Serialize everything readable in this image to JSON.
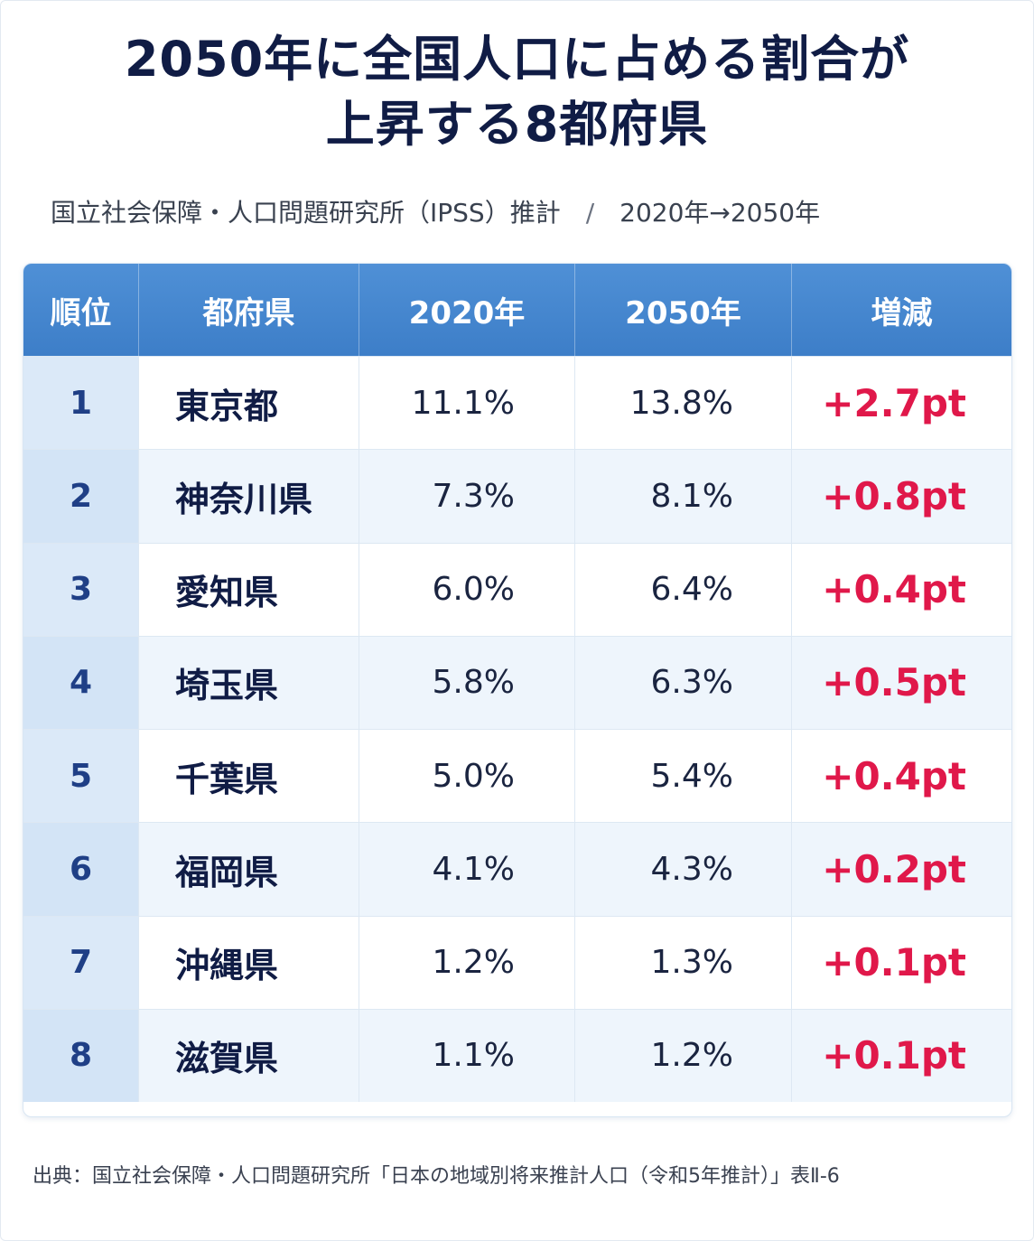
{
  "title_lines": [
    "2050年に全国人口に占める割合が",
    "上昇する8都府県"
  ],
  "subtitle": {
    "left": "国立社会保障・人口問題研究所（IPSS）推計",
    "separator": "/",
    "right": "2020年→2050年"
  },
  "colors": {
    "header_bg": "#4386cf",
    "rank_bg": "#dbe9f8",
    "alt_row_bg": "#eef5fc",
    "delta_text": "#e0184a",
    "title_text": "#101c45"
  },
  "chart_data": {
    "type": "table",
    "title": "2050年に全国人口に占める割合が上昇する8都府県",
    "columns": [
      "順位",
      "都府県",
      "2020年",
      "2050年",
      "増減"
    ],
    "rows": [
      {
        "rank": "1",
        "pref": "東京都",
        "v2020": "11.1%",
        "v2050": "13.8%",
        "delta": "+2.7pt"
      },
      {
        "rank": "2",
        "pref": "神奈川県",
        "v2020": "7.3%",
        "v2050": "8.1%",
        "delta": "+0.8pt"
      },
      {
        "rank": "3",
        "pref": "愛知県",
        "v2020": "6.0%",
        "v2050": "6.4%",
        "delta": "+0.4pt"
      },
      {
        "rank": "4",
        "pref": "埼玉県",
        "v2020": "5.8%",
        "v2050": "6.3%",
        "delta": "+0.5pt"
      },
      {
        "rank": "5",
        "pref": "千葉県",
        "v2020": "5.0%",
        "v2050": "5.4%",
        "delta": "+0.4pt"
      },
      {
        "rank": "6",
        "pref": "福岡県",
        "v2020": "4.1%",
        "v2050": "4.3%",
        "delta": "+0.2pt"
      },
      {
        "rank": "7",
        "pref": "沖縄県",
        "v2020": "1.2%",
        "v2050": "1.3%",
        "delta": "+0.1pt"
      },
      {
        "rank": "8",
        "pref": "滋賀県",
        "v2020": "1.1%",
        "v2050": "1.2%",
        "delta": "+0.1pt"
      }
    ]
  },
  "source": "出典：国立社会保障・人口問題研究所「日本の地域別将来推計人口（令和5年推計）」表Ⅱ-6"
}
